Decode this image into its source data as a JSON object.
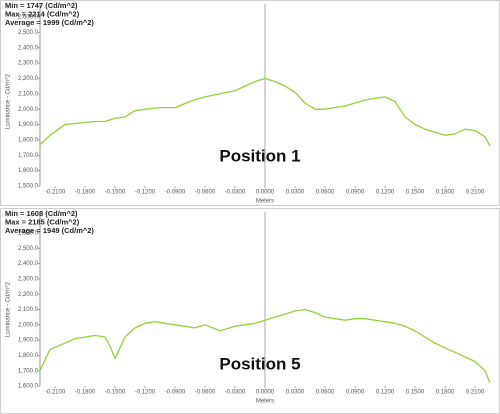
{
  "chart_data": [
    {
      "type": "line",
      "stats": [
        "Min = 1747 (Cd/m^2)",
        "Max = 2214 (Cd/m^2)",
        "Average = 1999 (Cd/m^2)"
      ],
      "annotation": "Position 1",
      "x_label": "Meters",
      "y_label": "Luminance - Cd/m^2",
      "x": [
        -0.225,
        -0.215,
        -0.2,
        -0.185,
        -0.17,
        -0.16,
        -0.15,
        -0.14,
        -0.13,
        -0.12,
        -0.105,
        -0.09,
        -0.075,
        -0.06,
        -0.045,
        -0.03,
        -0.02,
        -0.01,
        0,
        0.01,
        0.02,
        0.03,
        0.04,
        0.05,
        0.06,
        0.07,
        0.08,
        0.09,
        0.1,
        0.11,
        0.12,
        0.13,
        0.14,
        0.15,
        0.16,
        0.17,
        0.18,
        0.19,
        0.2,
        0.21,
        0.22,
        0.225
      ],
      "series": [
        {
          "name": "Luminance",
          "color": "#8fd43a",
          "values": [
            1770,
            1830,
            1900,
            1910,
            1920,
            1920,
            1940,
            1950,
            1990,
            2000,
            2010,
            2010,
            2050,
            2080,
            2100,
            2120,
            2150,
            2180,
            2200,
            2180,
            2150,
            2110,
            2040,
            2000,
            2000,
            2010,
            2020,
            2040,
            2060,
            2070,
            2080,
            2050,
            1950,
            1900,
            1870,
            1850,
            1830,
            1840,
            1870,
            1860,
            1820,
            1760
          ]
        }
      ],
      "xlim": [
        -0.225,
        0.225
      ],
      "ylim": [
        1500,
        2600
      ],
      "xticks": [
        {
          "value": -0.21,
          "label": "-0.2100"
        },
        {
          "value": -0.18,
          "label": "-0.1800"
        },
        {
          "value": -0.15,
          "label": "-0.1500"
        },
        {
          "value": -0.12,
          "label": "-0.1200"
        },
        {
          "value": -0.09,
          "label": "-0.0900"
        },
        {
          "value": -0.06,
          "label": "-0.0600"
        },
        {
          "value": -0.03,
          "label": "-0.0300"
        },
        {
          "value": 0,
          "label": "0.0000"
        },
        {
          "value": 0.03,
          "label": "0.0300"
        },
        {
          "value": 0.06,
          "label": "0.0600"
        },
        {
          "value": 0.09,
          "label": "0.0900"
        },
        {
          "value": 0.12,
          "label": "0.1200"
        },
        {
          "value": 0.15,
          "label": "0.1500"
        },
        {
          "value": 0.18,
          "label": "0.1800"
        },
        {
          "value": 0.21,
          "label": "0.2100"
        }
      ],
      "yticks": [
        {
          "value": 1500,
          "label": "1,500.0"
        },
        {
          "value": 1600,
          "label": "1,600.0"
        },
        {
          "value": 1700,
          "label": "1,700.0"
        },
        {
          "value": 1800,
          "label": "1,800.0"
        },
        {
          "value": 1900,
          "label": "1,900.0"
        },
        {
          "value": 2000,
          "label": "2,000.0"
        },
        {
          "value": 2100,
          "label": "2,100.0"
        },
        {
          "value": 2200,
          "label": "2,200.0"
        },
        {
          "value": 2300,
          "label": "2,300.0"
        },
        {
          "value": 2400,
          "label": "2,400.0"
        },
        {
          "value": 2500,
          "label": "2,500.0"
        },
        {
          "value": 2600,
          "label": "2,600.0"
        }
      ]
    },
    {
      "type": "line",
      "stats": [
        "Min = 1608 (Cd/m^2)",
        "Max = 2185 (Cd/m^2)",
        "Average = 1949 (Cd/m^2)"
      ],
      "annotation": "Position 5",
      "x_label": "Meters",
      "y_label": "Luminance - Cd/m^2",
      "x": [
        -0.225,
        -0.215,
        -0.2,
        -0.19,
        -0.18,
        -0.17,
        -0.16,
        -0.155,
        -0.15,
        -0.145,
        -0.14,
        -0.13,
        -0.12,
        -0.11,
        -0.1,
        -0.09,
        -0.08,
        -0.07,
        -0.06,
        -0.045,
        -0.03,
        -0.02,
        -0.01,
        0,
        0.01,
        0.02,
        0.03,
        0.04,
        0.05,
        0.06,
        0.07,
        0.08,
        0.09,
        0.1,
        0.11,
        0.12,
        0.13,
        0.14,
        0.15,
        0.16,
        0.17,
        0.18,
        0.19,
        0.2,
        0.21,
        0.22,
        0.225
      ],
      "series": [
        {
          "name": "Luminance",
          "color": "#8fd43a",
          "values": [
            1700,
            1840,
            1880,
            1910,
            1920,
            1930,
            1920,
            1860,
            1780,
            1850,
            1920,
            1980,
            2010,
            2020,
            2010,
            2000,
            1990,
            1980,
            2000,
            1960,
            1990,
            2000,
            2010,
            2030,
            2050,
            2070,
            2090,
            2100,
            2080,
            2050,
            2040,
            2030,
            2040,
            2040,
            2030,
            2020,
            2010,
            1990,
            1960,
            1920,
            1880,
            1850,
            1820,
            1790,
            1760,
            1700,
            1620
          ]
        }
      ],
      "xlim": [
        -0.225,
        0.225
      ],
      "ylim": [
        1600,
        2600
      ],
      "xticks": [
        {
          "value": -0.21,
          "label": "-0.2100"
        },
        {
          "value": -0.18,
          "label": "-0.1800"
        },
        {
          "value": -0.15,
          "label": "-0.1500"
        },
        {
          "value": -0.12,
          "label": "-0.1200"
        },
        {
          "value": -0.09,
          "label": "-0.0900"
        },
        {
          "value": -0.06,
          "label": "-0.0600"
        },
        {
          "value": -0.03,
          "label": "-0.0300"
        },
        {
          "value": 0,
          "label": "0.0000"
        },
        {
          "value": 0.03,
          "label": "0.0300"
        },
        {
          "value": 0.06,
          "label": "0.0600"
        },
        {
          "value": 0.09,
          "label": "0.0900"
        },
        {
          "value": 0.12,
          "label": "0.1200"
        },
        {
          "value": 0.15,
          "label": "0.1500"
        },
        {
          "value": 0.18,
          "label": "0.1800"
        },
        {
          "value": 0.21,
          "label": "0.2100"
        }
      ],
      "yticks": [
        {
          "value": 1600,
          "label": "1,600.0"
        },
        {
          "value": 1700,
          "label": "1,700.0"
        },
        {
          "value": 1800,
          "label": "1,800.0"
        },
        {
          "value": 1900,
          "label": "1,900.0"
        },
        {
          "value": 2000,
          "label": "2,000.0"
        },
        {
          "value": 2100,
          "label": "2,100.0"
        },
        {
          "value": 2200,
          "label": "2,200.0"
        },
        {
          "value": 2300,
          "label": "2,300.0"
        },
        {
          "value": 2400,
          "label": "2,400.0"
        },
        {
          "value": 2500,
          "label": "2,500.0"
        },
        {
          "value": 2600,
          "label": "2,600.0"
        }
      ]
    }
  ]
}
